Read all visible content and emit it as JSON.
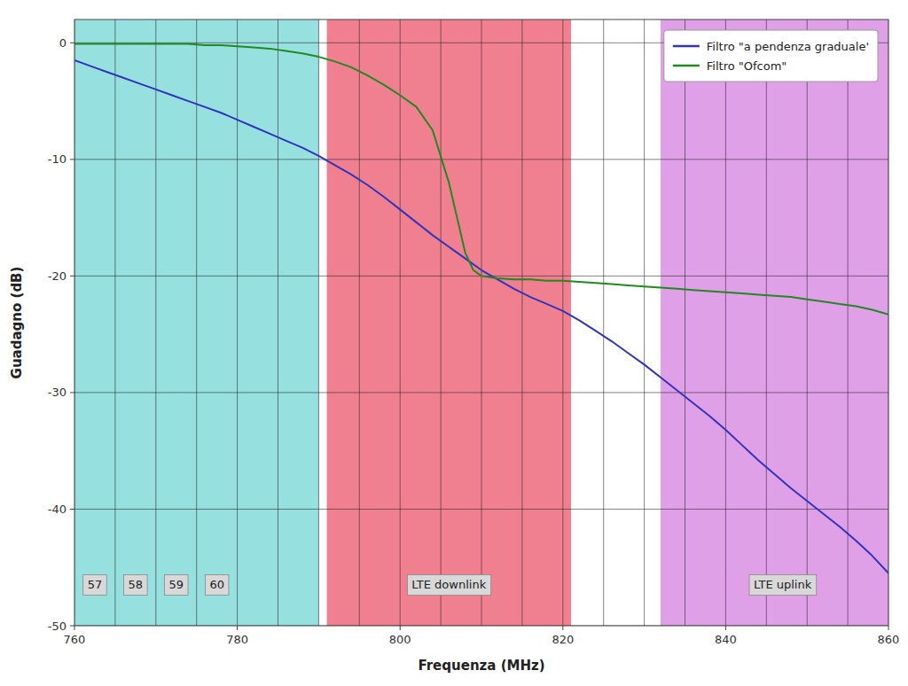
{
  "chart_data": {
    "type": "line",
    "title": "",
    "x_label": "Frequenza (MHz)",
    "y_label": "Guadagno (dB)",
    "xlim": [
      760,
      860
    ],
    "ylim": [
      -50,
      2
    ],
    "xticks": [
      760,
      780,
      800,
      820,
      840,
      860
    ],
    "yticks": [
      0,
      -10,
      -20,
      -30,
      -40,
      -50
    ],
    "grid": true,
    "x_grid": [
      760,
      765,
      770,
      775,
      780,
      785,
      790,
      795,
      800,
      805,
      810,
      815,
      820,
      825,
      830,
      835,
      840,
      845,
      850,
      855,
      860
    ],
    "legend": "upper right",
    "regions": [
      {
        "start": 760,
        "end": 790,
        "color": "#96e0e0"
      },
      {
        "start": 791,
        "end": 821,
        "color": "#f08090"
      },
      {
        "start": 832,
        "end": 862,
        "color": "#e0a0e8"
      }
    ],
    "annotations": [
      {
        "text": "57",
        "x": 762.5,
        "y": -46.5
      },
      {
        "text": "58",
        "x": 767.5,
        "y": -46.5
      },
      {
        "text": "59",
        "x": 772.5,
        "y": -46.5
      },
      {
        "text": "60",
        "x": 777.5,
        "y": -46.5
      },
      {
        "text": "LTE downlink",
        "x": 806.0,
        "y": -46.5
      },
      {
        "text": "LTE uplink",
        "x": 847.0,
        "y": -46.5
      }
    ],
    "series": [
      {
        "name": "Filtro \"a pendenza graduale'",
        "color": "#3333bb",
        "x": [
          760,
          762,
          764,
          766,
          768,
          770,
          772,
          774,
          776,
          778,
          780,
          782,
          784,
          786,
          788,
          790,
          792,
          794,
          796,
          798,
          800,
          802,
          804,
          806,
          808,
          810,
          812,
          814,
          816,
          818,
          820,
          822,
          824,
          826,
          828,
          830,
          832,
          834,
          836,
          838,
          840,
          842,
          844,
          846,
          848,
          850,
          852,
          854,
          856,
          858,
          860
        ],
        "values": [
          -1.5,
          -2.0,
          -2.5,
          -3.0,
          -3.5,
          -4.0,
          -4.5,
          -5.0,
          -5.5,
          -6.0,
          -6.6,
          -7.2,
          -7.8,
          -8.4,
          -9.0,
          -9.7,
          -10.5,
          -11.3,
          -12.2,
          -13.2,
          -14.3,
          -15.4,
          -16.5,
          -17.5,
          -18.5,
          -19.5,
          -20.3,
          -21.1,
          -21.8,
          -22.4,
          -23.0,
          -23.8,
          -24.7,
          -25.6,
          -26.6,
          -27.6,
          -28.7,
          -29.8,
          -30.9,
          -32.0,
          -33.2,
          -34.5,
          -35.8,
          -37.0,
          -38.2,
          -39.3,
          -40.4,
          -41.5,
          -42.7,
          -44.0,
          -45.5
        ]
      },
      {
        "name": "Filtro \"Ofcom\"",
        "color": "#228822",
        "x": [
          760,
          762,
          764,
          766,
          768,
          770,
          772,
          774,
          776,
          778,
          780,
          782,
          784,
          786,
          788,
          790,
          792,
          794,
          796,
          798,
          800,
          802,
          804,
          806,
          807,
          808,
          809,
          810,
          811,
          812,
          814,
          816,
          818,
          820,
          822,
          824,
          826,
          828,
          830,
          832,
          834,
          836,
          838,
          840,
          842,
          844,
          846,
          848,
          850,
          852,
          854,
          856,
          858,
          860
        ],
        "values": [
          -0.1,
          -0.1,
          -0.1,
          -0.1,
          -0.1,
          -0.1,
          -0.1,
          -0.1,
          -0.2,
          -0.2,
          -0.3,
          -0.4,
          -0.5,
          -0.7,
          -0.9,
          -1.2,
          -1.6,
          -2.1,
          -2.8,
          -3.6,
          -4.5,
          -5.5,
          -7.5,
          -12.0,
          -15.0,
          -18.0,
          -19.5,
          -20.0,
          -20.1,
          -20.2,
          -20.3,
          -20.3,
          -20.4,
          -20.4,
          -20.5,
          -20.6,
          -20.7,
          -20.8,
          -20.9,
          -21.0,
          -21.1,
          -21.2,
          -21.3,
          -21.4,
          -21.5,
          -21.6,
          -21.7,
          -21.8,
          -22.0,
          -22.2,
          -22.4,
          -22.6,
          -22.9,
          -23.3
        ]
      }
    ]
  }
}
